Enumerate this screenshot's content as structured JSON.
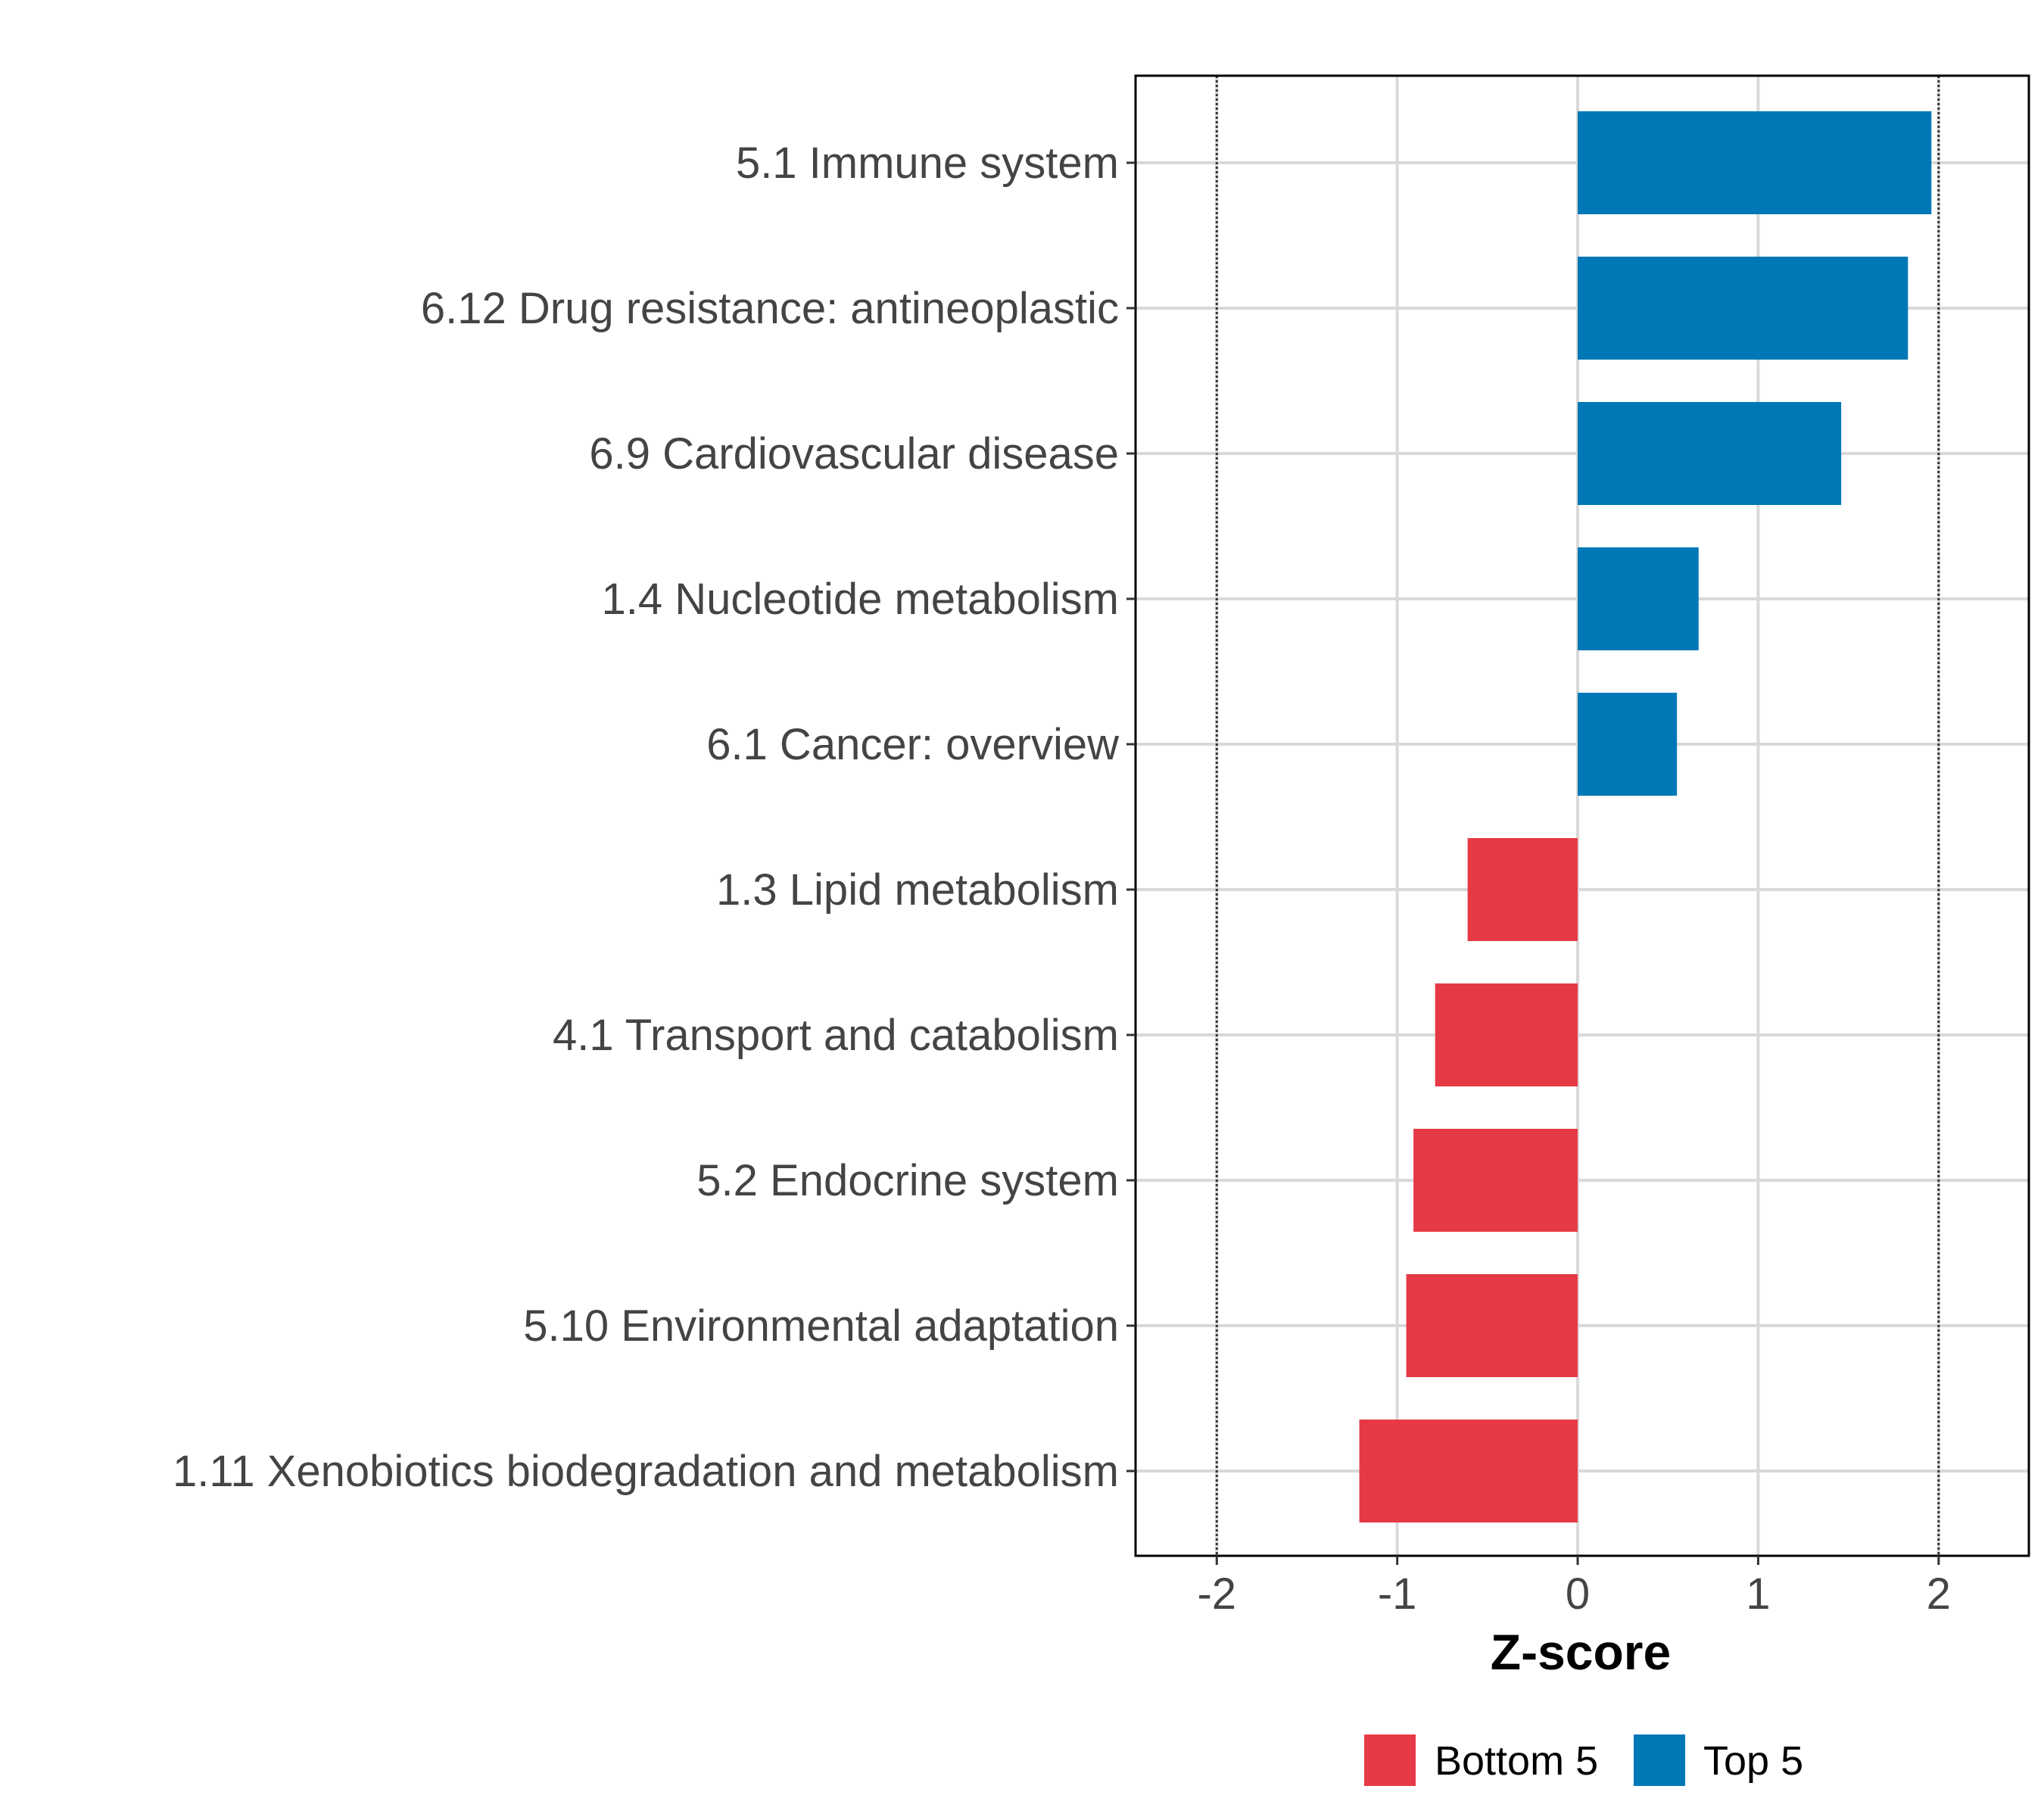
{
  "chart_data": {
    "type": "bar",
    "orientation": "horizontal",
    "title": "",
    "xlabel": "Z-score",
    "ylabel": "",
    "xlim": [
      -2.45,
      2.5
    ],
    "x_ticks": [
      -2,
      -1,
      0,
      1,
      2
    ],
    "x_tick_labels": [
      "-2",
      "-1",
      "0",
      "1",
      "2"
    ],
    "reference_lines": [
      -2,
      2
    ],
    "grid": true,
    "legend_position": "bottom",
    "categories": [
      "5.1 Immune system",
      "6.12 Drug resistance: antineoplastic",
      "6.9 Cardiovascular disease",
      "1.4 Nucleotide metabolism",
      "6.1 Cancer: overview",
      "1.3 Lipid metabolism",
      "4.1 Transport and catabolism",
      "5.2 Endocrine system",
      "5.10 Environmental adaptation",
      "1.11 Xenobiotics biodegradation and metabolism"
    ],
    "values": [
      1.96,
      1.83,
      1.46,
      0.67,
      0.55,
      -0.61,
      -0.79,
      -0.91,
      -0.95,
      -1.21
    ],
    "groups": [
      "Top 5",
      "Top 5",
      "Top 5",
      "Top 5",
      "Top 5",
      "Bottom 5",
      "Bottom 5",
      "Bottom 5",
      "Bottom 5",
      "Bottom 5"
    ],
    "legend": [
      {
        "name": "Bottom 5",
        "color": "#e63946"
      },
      {
        "name": "Top 5",
        "color": "#0077b6"
      }
    ]
  }
}
